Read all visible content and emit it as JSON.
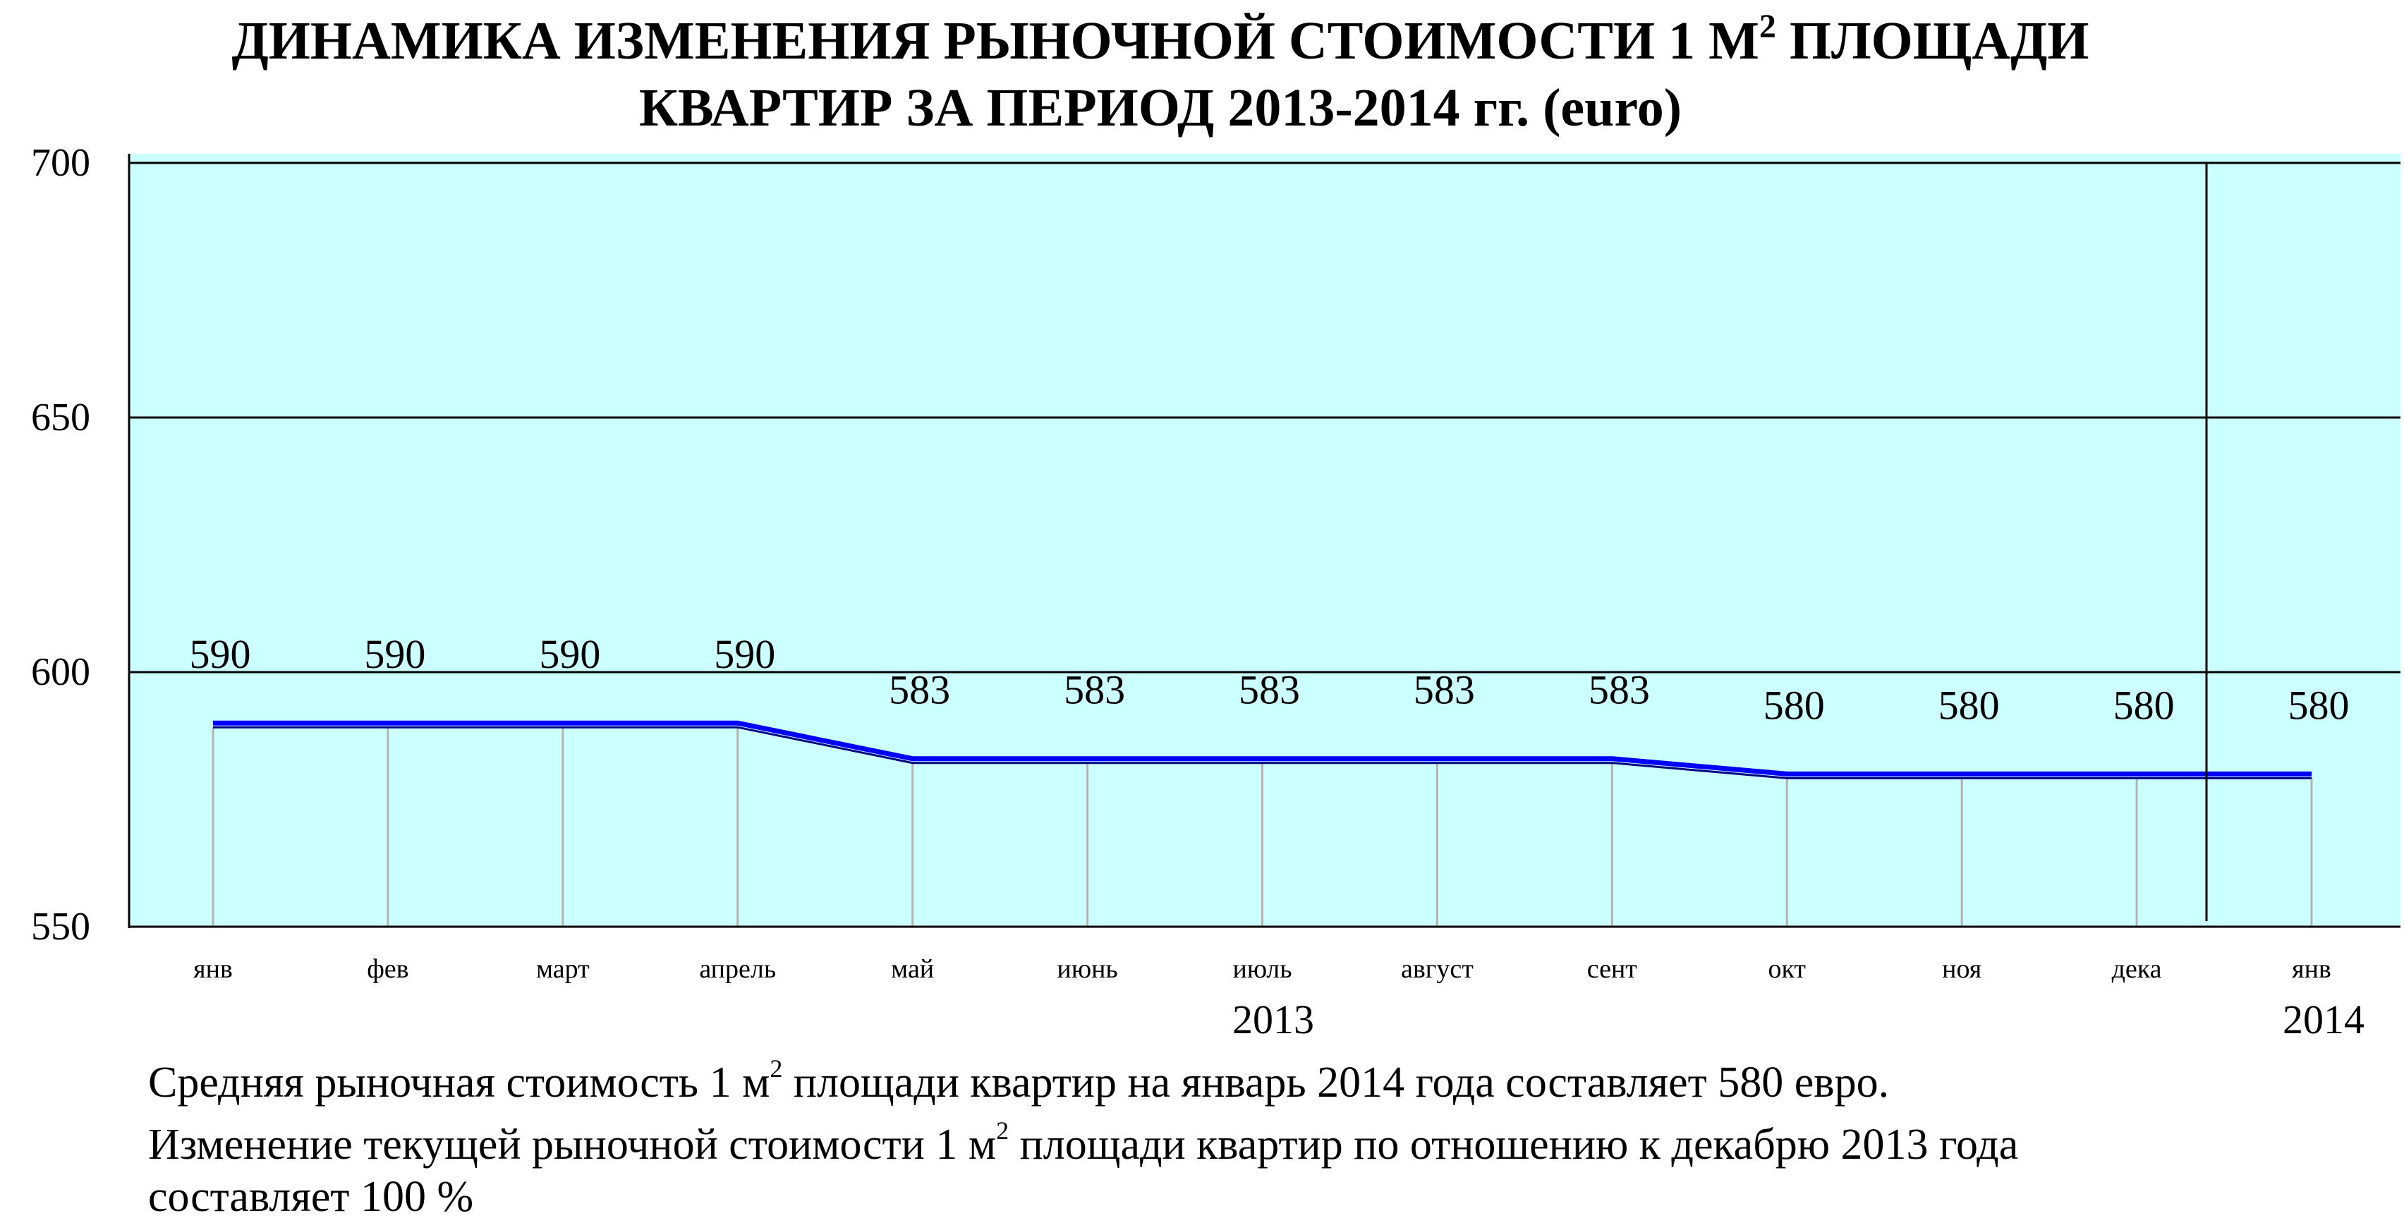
{
  "title": {
    "line1_a": "ДИНАМИКА ИЗМЕНЕНИЯ РЫНОЧНОЙ СТОИМОСТИ 1 М",
    "line1_sup": "2",
    "line1_b": " ПЛОЩАДИ",
    "line2": "КВАРТИР ЗА ПЕРИОД 2013-2014 гг. (euro)"
  },
  "chart_data": {
    "type": "line",
    "title": "ДИНАМИКА ИЗМЕНЕНИЯ РЫНОЧНОЙ СТОИМОСТИ 1 М2 ПЛОЩАДИ КВАРТИР ЗА ПЕРИОД 2013-2014 гг. (euro)",
    "categories": [
      "янв",
      "фев",
      "март",
      "апрель",
      "май",
      "июнь",
      "июль",
      "август",
      "сент",
      "окт",
      "ноя",
      "дека",
      "янв"
    ],
    "year_labels": [
      "2013",
      "2014"
    ],
    "series": [
      {
        "values": [
          590,
          590,
          590,
          590,
          583,
          583,
          583,
          583,
          583,
          580,
          580,
          580,
          580
        ]
      }
    ],
    "value_labels": [
      "590",
      "590",
      "590",
      "590",
      "583",
      "583",
      "583",
      "583",
      "583",
      "580",
      "580",
      "580",
      "580"
    ],
    "yticks": [
      "550",
      "600",
      "650",
      "700"
    ],
    "ylim": [
      550,
      700
    ],
    "grid": "horizontal at 600, 650, 700",
    "year_divider": "between дека and янв",
    "colors": {
      "plot_bg": "#ccffff",
      "line": "#0000ff",
      "line_shadow": "#000080",
      "drop_lines": "#b3b3b3",
      "grid": "#000000"
    }
  },
  "notes": {
    "line1_a": "Средняя рыночная стоимость 1 м",
    "line1_sup": "2",
    "line1_b": " площади квартир на январь 2014 года составляет 580 евро.",
    "line2_a": "Изменение текущей рыночной стоимости 1 м",
    "line2_sup": "2",
    "line2_b": " площади квартир по отношению к декабрю 2013 года",
    "line3": "составляет  100 %"
  }
}
